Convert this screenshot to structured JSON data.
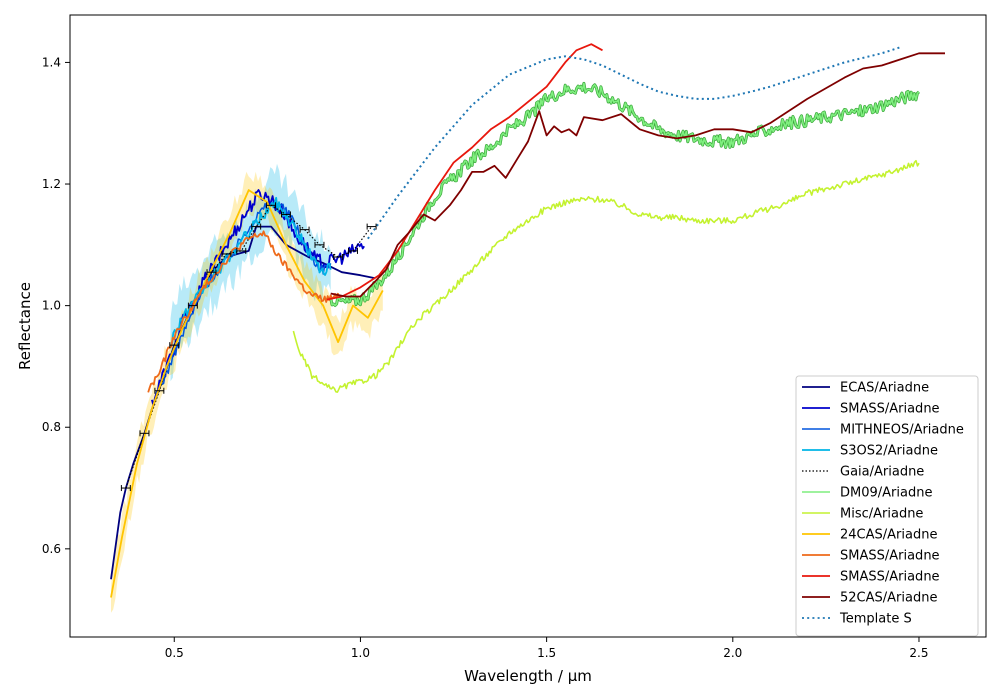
{
  "chart_data": {
    "type": "line",
    "title": "",
    "xlabel": "Wavelength / µm",
    "ylabel": "Reflectance",
    "xlim": [
      0.22,
      2.68
    ],
    "ylim": [
      0.455,
      1.478
    ],
    "x_ticks": [
      0.5,
      1.0,
      1.5,
      2.0,
      2.5
    ],
    "x_tick_labels": [
      "0.5",
      "1.0",
      "1.5",
      "2.0",
      "2.5"
    ],
    "y_ticks": [
      0.6,
      0.8,
      1.0,
      1.2,
      1.4
    ],
    "y_tick_labels": [
      "0.6",
      "0.8",
      "1.0",
      "1.2",
      "1.4"
    ],
    "grid": false,
    "legend_position": "lower-right",
    "series": [
      {
        "name": "ECAS/Ariadne",
        "color": "#00007f",
        "style": "solid",
        "width": 1.8,
        "x": [
          0.33,
          0.355,
          0.37,
          0.39,
          0.42,
          0.44,
          0.47,
          0.5,
          0.55,
          0.6,
          0.64,
          0.7,
          0.72,
          0.76,
          0.8,
          0.86,
          0.9,
          0.95,
          1.0,
          1.04
        ],
        "y": [
          0.55,
          0.66,
          0.7,
          0.74,
          0.79,
          0.83,
          0.88,
          0.935,
          1.0,
          1.055,
          1.08,
          1.09,
          1.13,
          1.13,
          1.1,
          1.08,
          1.07,
          1.055,
          1.05,
          1.045
        ]
      },
      {
        "name": "SMASS/Ariadne",
        "color": "#0000cc",
        "style": "solid",
        "width": 1.8,
        "noise": 0.012,
        "x": [
          0.44,
          0.46,
          0.48,
          0.5,
          0.52,
          0.55,
          0.58,
          0.61,
          0.64,
          0.67,
          0.7,
          0.73,
          0.76,
          0.78,
          0.8,
          0.82,
          0.85,
          0.88,
          0.91,
          0.93,
          0.95,
          0.97,
          0.99,
          1.01
        ],
        "y": [
          0.84,
          0.87,
          0.9,
          0.93,
          0.97,
          1.0,
          1.04,
          1.07,
          1.1,
          1.13,
          1.16,
          1.185,
          1.175,
          1.16,
          1.15,
          1.12,
          1.1,
          1.075,
          1.07,
          1.075,
          1.08,
          1.085,
          1.095,
          1.1
        ]
      },
      {
        "name": "MITHNEOS/Ariadne",
        "color": "#0055dd",
        "style": "solid",
        "width": 1.5,
        "noise": 0.008,
        "x": [
          0.45,
          0.48,
          0.52,
          0.55,
          0.58,
          0.62,
          0.66,
          0.7,
          0.74,
          0.78,
          0.82,
          0.85,
          0.88,
          0.9,
          0.92
        ],
        "y": [
          0.85,
          0.89,
          0.95,
          0.99,
          1.03,
          1.06,
          1.09,
          1.13,
          1.16,
          1.17,
          1.14,
          1.1,
          1.07,
          1.06,
          1.07
        ]
      },
      {
        "name": "S3OS2/Ariadne",
        "color": "#00b4e6",
        "style": "solid",
        "width": 1.8,
        "noise": 0.01,
        "band": 0.045,
        "x": [
          0.49,
          0.52,
          0.55,
          0.58,
          0.62,
          0.66,
          0.7,
          0.74,
          0.77,
          0.8,
          0.83,
          0.86,
          0.89,
          0.92
        ],
        "y": [
          0.94,
          0.98,
          1.0,
          1.03,
          1.06,
          1.09,
          1.12,
          1.15,
          1.17,
          1.15,
          1.12,
          1.09,
          1.06,
          1.06
        ]
      },
      {
        "name": "Gaia/Ariadne",
        "color": "#000000",
        "style": "dotted",
        "width": 1.2,
        "x": [
          0.37,
          0.42,
          0.46,
          0.5,
          0.55,
          0.6,
          0.64,
          0.68,
          0.72,
          0.76,
          0.8,
          0.85,
          0.89,
          0.94,
          0.98,
          1.03
        ],
        "y": [
          0.7,
          0.79,
          0.86,
          0.935,
          1.0,
          1.055,
          1.085,
          1.09,
          1.13,
          1.165,
          1.15,
          1.125,
          1.1,
          1.08,
          1.09,
          1.13
        ]
      },
      {
        "name": "DM09/Ariadne",
        "color": "#7fee7f",
        "style": "solid",
        "width": 1.6,
        "noise": 0.01,
        "outline": "#3aa83a",
        "x": [
          0.92,
          0.96,
          1.0,
          1.04,
          1.08,
          1.12,
          1.16,
          1.2,
          1.25,
          1.3,
          1.35,
          1.4,
          1.45,
          1.5,
          1.55,
          1.6,
          1.65,
          1.7,
          1.75,
          1.8,
          1.85,
          1.9,
          1.95,
          2.0,
          2.05,
          2.1,
          2.15,
          2.2,
          2.25,
          2.3,
          2.35,
          2.4,
          2.45,
          2.5
        ],
        "y": [
          1.01,
          1.005,
          1.01,
          1.03,
          1.06,
          1.1,
          1.14,
          1.18,
          1.21,
          1.24,
          1.26,
          1.29,
          1.31,
          1.34,
          1.355,
          1.36,
          1.35,
          1.33,
          1.31,
          1.29,
          1.28,
          1.275,
          1.27,
          1.27,
          1.28,
          1.29,
          1.3,
          1.305,
          1.31,
          1.315,
          1.32,
          1.33,
          1.34,
          1.35
        ]
      },
      {
        "name": "Misc/Ariadne",
        "color": "#c4f230",
        "style": "solid",
        "width": 1.6,
        "noise": 0.005,
        "x": [
          0.82,
          0.84,
          0.87,
          0.9,
          0.93,
          0.97,
          1.0,
          1.04,
          1.08,
          1.12,
          1.16,
          1.2,
          1.25,
          1.3,
          1.35,
          1.4,
          1.45,
          1.5,
          1.55,
          1.6,
          1.65,
          1.7,
          1.75,
          1.8,
          1.85,
          1.9,
          1.95,
          2.0,
          2.05,
          2.1,
          2.15,
          2.2,
          2.3,
          2.4,
          2.5
        ],
        "y": [
          0.955,
          0.92,
          0.885,
          0.87,
          0.86,
          0.87,
          0.875,
          0.885,
          0.91,
          0.95,
          0.98,
          1.0,
          1.03,
          1.06,
          1.09,
          1.12,
          1.14,
          1.16,
          1.17,
          1.175,
          1.175,
          1.165,
          1.15,
          1.145,
          1.145,
          1.14,
          1.14,
          1.14,
          1.15,
          1.16,
          1.17,
          1.185,
          1.2,
          1.215,
          1.235
        ]
      },
      {
        "name": "24CAS/Ariadne",
        "color": "#ffc400",
        "style": "solid",
        "width": 1.8,
        "band": 0.03,
        "x": [
          0.33,
          0.36,
          0.4,
          0.44,
          0.48,
          0.52,
          0.56,
          0.6,
          0.65,
          0.7,
          0.75,
          0.8,
          0.85,
          0.9,
          0.94,
          0.98,
          1.02,
          1.06
        ],
        "y": [
          0.52,
          0.62,
          0.74,
          0.83,
          0.9,
          0.96,
          1.01,
          1.06,
          1.12,
          1.19,
          1.17,
          1.1,
          1.04,
          1.0,
          0.94,
          1.0,
          0.98,
          1.025
        ]
      },
      {
        "name": "SMASS/Ariadne",
        "color": "#ee6a1a",
        "style": "solid",
        "width": 1.8,
        "noise": 0.006,
        "x": [
          0.43,
          0.46,
          0.5,
          0.54,
          0.58,
          0.62,
          0.66,
          0.7,
          0.74,
          0.78,
          0.82,
          0.86,
          0.9,
          0.94
        ],
        "y": [
          0.86,
          0.89,
          0.95,
          0.99,
          1.03,
          1.06,
          1.09,
          1.11,
          1.12,
          1.08,
          1.05,
          1.02,
          1.01,
          1.015
        ]
      },
      {
        "name": "SMASS/Ariadne",
        "color": "#e8170d",
        "style": "solid",
        "width": 1.8,
        "x": [
          0.91,
          0.95,
          1.0,
          1.05,
          1.1,
          1.15,
          1.2,
          1.25,
          1.3,
          1.35,
          1.4,
          1.45,
          1.5,
          1.55,
          1.58,
          1.62,
          1.65
        ],
        "y": [
          1.01,
          1.015,
          1.03,
          1.05,
          1.09,
          1.14,
          1.19,
          1.235,
          1.26,
          1.29,
          1.31,
          1.335,
          1.36,
          1.4,
          1.42,
          1.43,
          1.42
        ]
      },
      {
        "name": "52CAS/Ariadne",
        "color": "#7f0000",
        "style": "solid",
        "width": 1.8,
        "x": [
          0.92,
          0.96,
          1.0,
          1.04,
          1.07,
          1.1,
          1.13,
          1.17,
          1.2,
          1.24,
          1.27,
          1.3,
          1.33,
          1.36,
          1.39,
          1.42,
          1.45,
          1.48,
          1.5,
          1.52,
          1.54,
          1.56,
          1.58,
          1.6,
          1.65,
          1.7,
          1.75,
          1.8,
          1.85,
          1.9,
          1.95,
          2.0,
          2.05,
          2.1,
          2.2,
          2.3,
          2.35,
          2.4,
          2.45,
          2.5,
          2.57
        ],
        "y": [
          1.02,
          1.015,
          1.015,
          1.04,
          1.06,
          1.1,
          1.12,
          1.15,
          1.14,
          1.165,
          1.19,
          1.22,
          1.22,
          1.23,
          1.21,
          1.24,
          1.27,
          1.32,
          1.28,
          1.295,
          1.285,
          1.29,
          1.28,
          1.31,
          1.305,
          1.315,
          1.29,
          1.28,
          1.275,
          1.28,
          1.29,
          1.29,
          1.285,
          1.3,
          1.34,
          1.375,
          1.39,
          1.395,
          1.405,
          1.415,
          1.415
        ]
      },
      {
        "name": "Template S",
        "color": "#1f77b4",
        "style": "dotted-thick",
        "width": 2,
        "x": [
          1.02,
          1.1,
          1.2,
          1.3,
          1.4,
          1.5,
          1.55,
          1.6,
          1.65,
          1.7,
          1.75,
          1.8,
          1.85,
          1.9,
          1.95,
          2.0,
          2.05,
          2.1,
          2.2,
          2.3,
          2.4,
          2.45
        ],
        "y": [
          1.11,
          1.18,
          1.26,
          1.33,
          1.38,
          1.405,
          1.41,
          1.405,
          1.395,
          1.38,
          1.365,
          1.352,
          1.345,
          1.34,
          1.34,
          1.345,
          1.352,
          1.36,
          1.38,
          1.4,
          1.415,
          1.425
        ]
      }
    ],
    "error_points": {
      "x": [
        0.37,
        0.42,
        0.46,
        0.5,
        0.55,
        0.6,
        0.64,
        0.68,
        0.72,
        0.76,
        0.8,
        0.85,
        0.89,
        0.94,
        0.98,
        1.03
      ],
      "y": [
        0.7,
        0.79,
        0.86,
        0.935,
        1.0,
        1.055,
        1.085,
        1.09,
        1.13,
        1.165,
        1.15,
        1.125,
        1.1,
        1.08,
        1.09,
        1.13
      ],
      "xerr": 0.012
    }
  }
}
